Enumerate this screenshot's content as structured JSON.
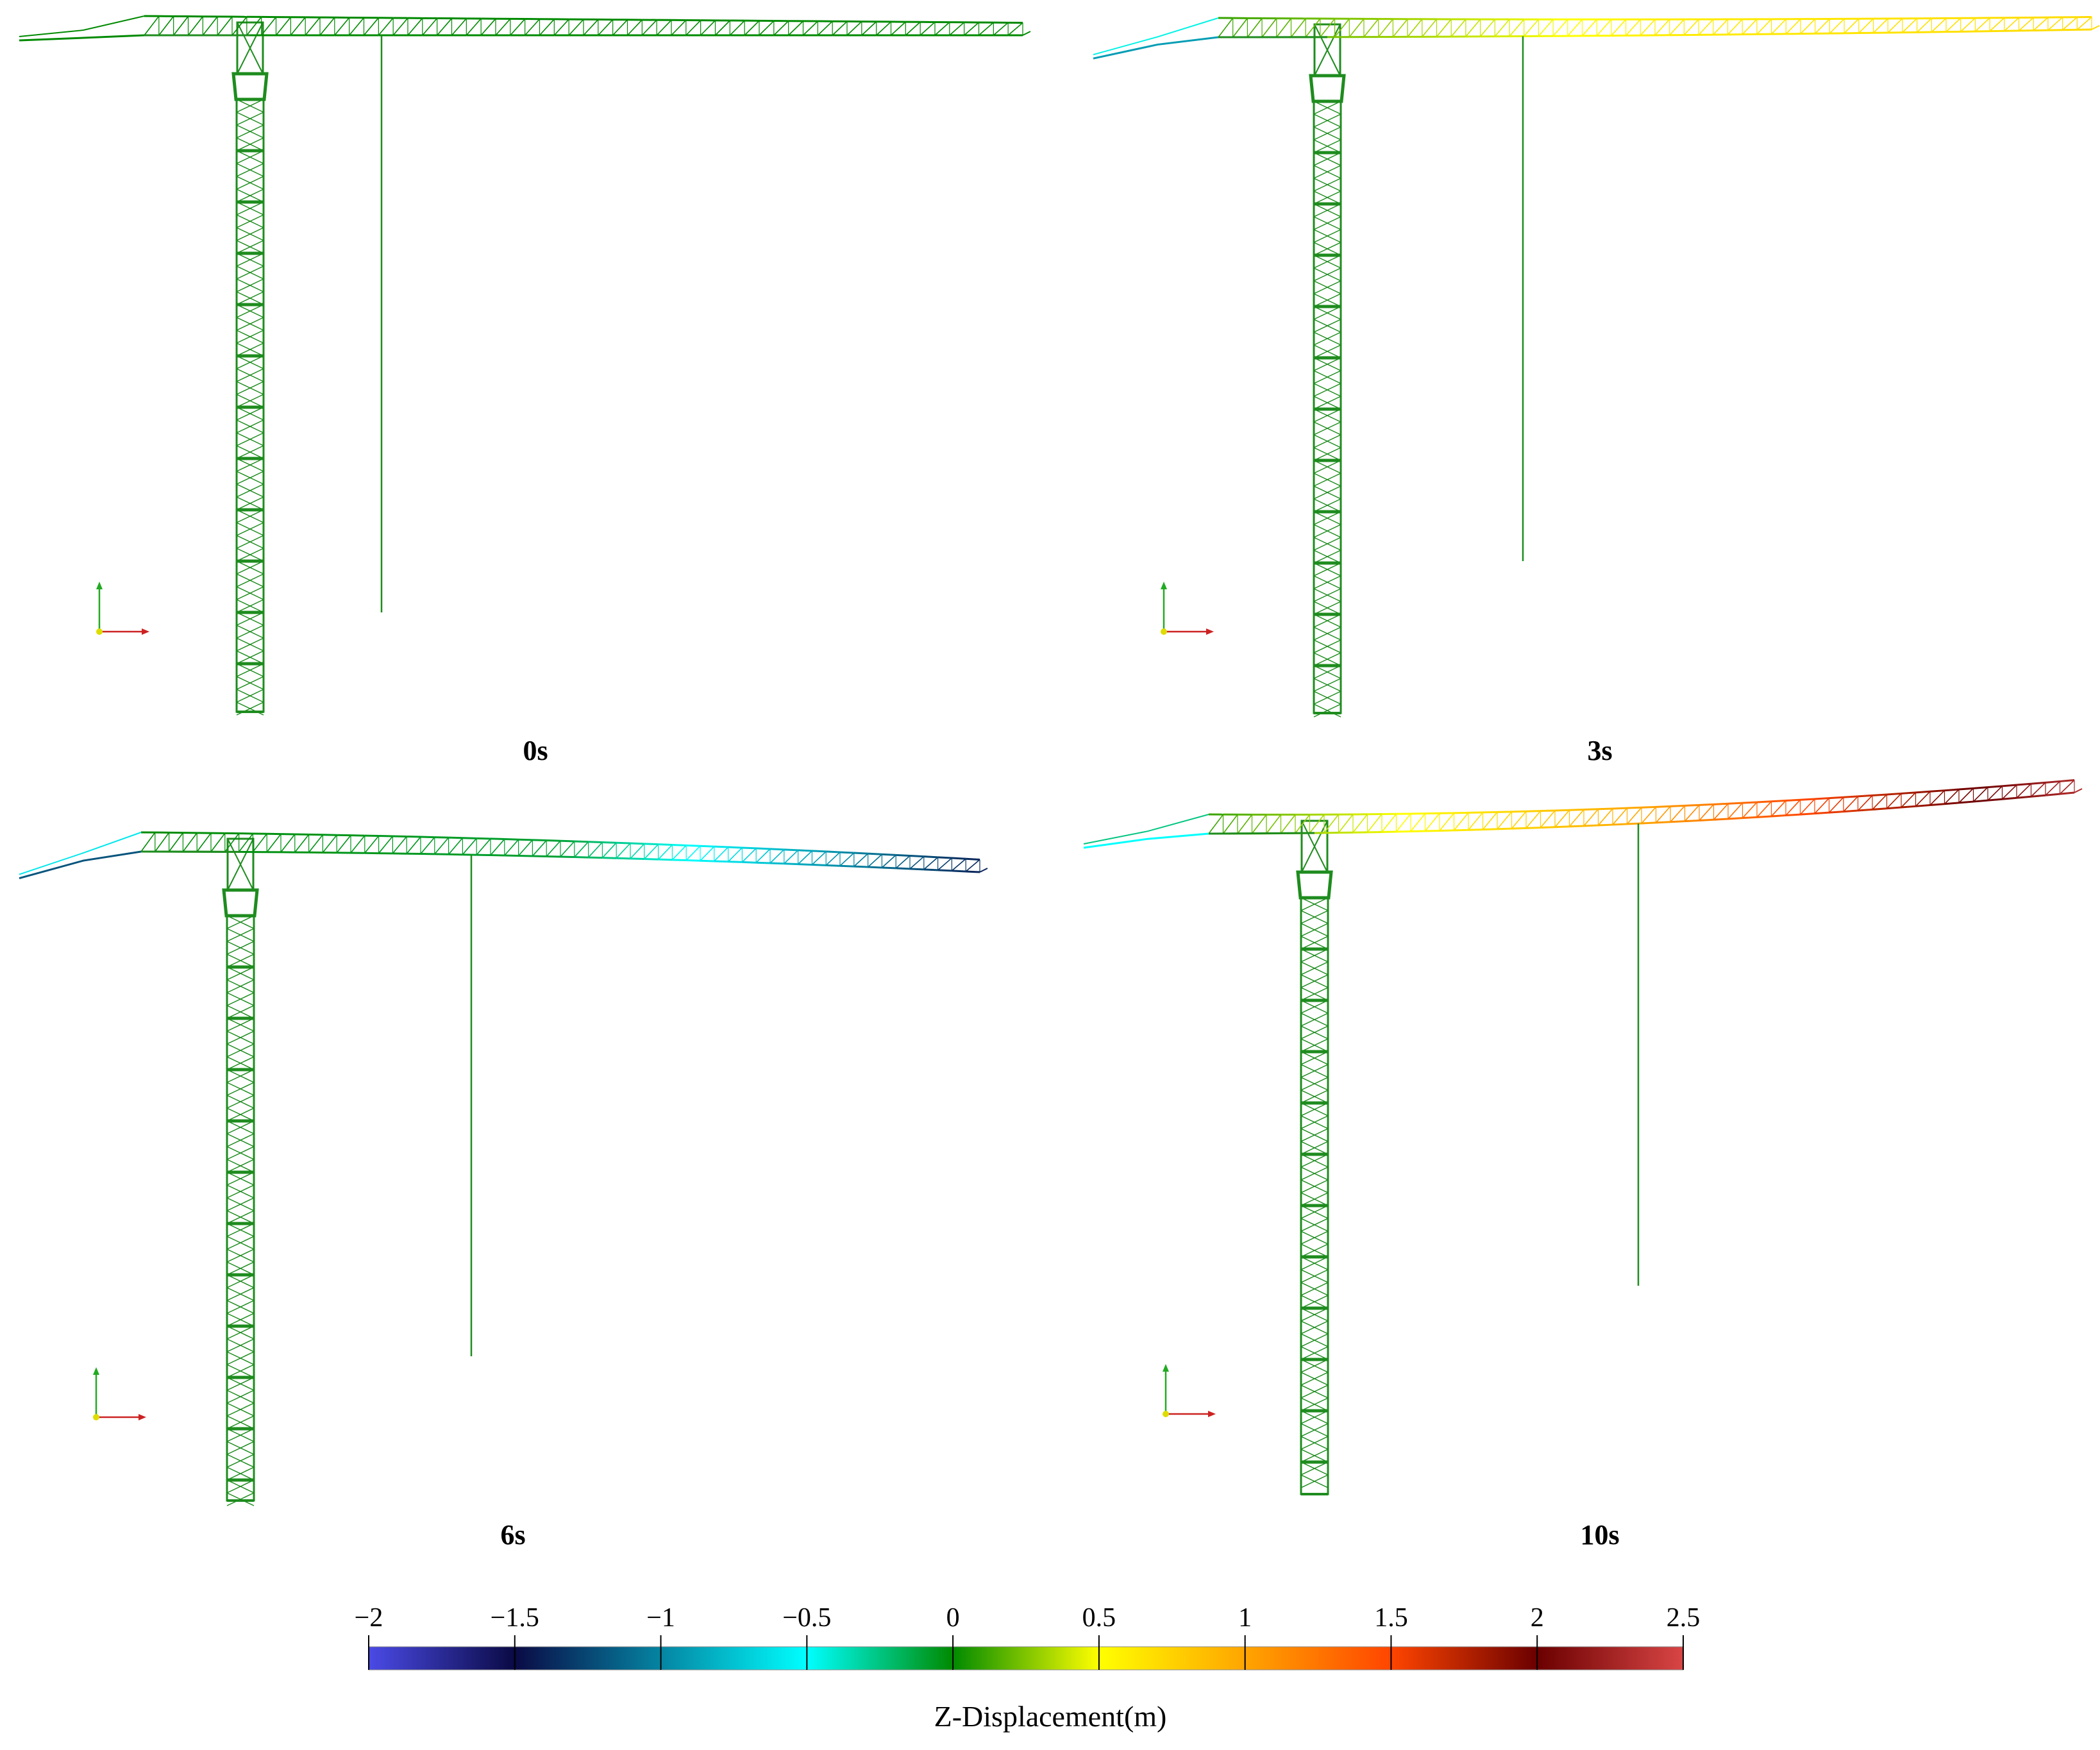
{
  "panels": [
    {
      "caption": "0s",
      "tip_deflection": 0.0,
      "z_root": 0.0,
      "z_mid": 0.0,
      "z_tip": 0.0,
      "z_counter": 0.0
    },
    {
      "caption": "3s",
      "tip_deflection": 0.3,
      "z_root": 0.1,
      "z_mid": 0.6,
      "z_tip": 0.7,
      "z_counter": -0.9
    },
    {
      "caption": "6s",
      "tip_deflection": -0.8,
      "z_root": 0.0,
      "z_mid": -0.1,
      "z_tip": -1.4,
      "z_counter": -1.2
    },
    {
      "caption": "10s",
      "tip_deflection": 1.6,
      "z_root": 0.1,
      "z_mid": 1.0,
      "z_tip": 2.3,
      "z_counter": -0.5
    }
  ],
  "colorbar": {
    "title": "Z-Displacement(m)",
    "min": -2,
    "max": 2.5,
    "ticks": [
      "−2",
      "−1.5",
      "−1",
      "−0.5",
      "0",
      "0.5",
      "1",
      "1.5",
      "2",
      "2.5"
    ],
    "tick_values": [
      -2,
      -1.5,
      -1,
      -0.5,
      0,
      0.5,
      1,
      1.5,
      2,
      2.5
    ],
    "stops": [
      {
        "value": -2,
        "color": "#4a4ae6"
      },
      {
        "value": -1.5,
        "color": "#0a0a45"
      },
      {
        "value": -0.5,
        "color": "#00ffff"
      },
      {
        "value": 0,
        "color": "#008a00"
      },
      {
        "value": 0.5,
        "color": "#ffff00"
      },
      {
        "value": 1,
        "color": "#ffa500"
      },
      {
        "value": 1.5,
        "color": "#ff4500"
      },
      {
        "value": 2,
        "color": "#6b0000"
      },
      {
        "value": 2.5,
        "color": "#d94545"
      }
    ]
  },
  "colors": {
    "structure": "#1e8c1e",
    "axis_x": "#cc2222",
    "axis_y": "#22aa22",
    "origin": "#dddd00"
  }
}
